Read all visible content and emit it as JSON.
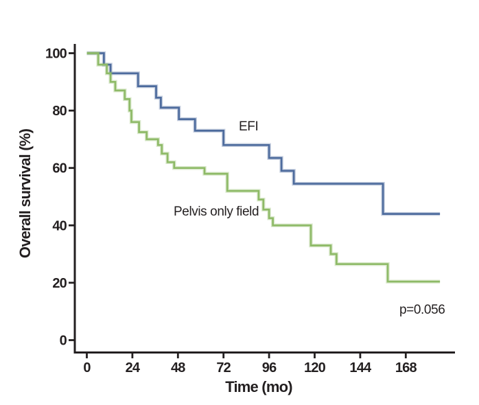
{
  "figure": {
    "background_color": "#ffffff",
    "axis_color": "#231f20",
    "text_color": "#231f20"
  },
  "chart_data": {
    "type": "line",
    "subtype": "kaplan-meier-step",
    "title": "",
    "xlabel": "Time (mo)",
    "ylabel": "Overall survival (%)",
    "x_ticks": [
      0,
      24,
      48,
      72,
      96,
      120,
      144,
      168
    ],
    "y_ticks": [
      0,
      20,
      40,
      60,
      80,
      100
    ],
    "xlim": [
      0,
      194
    ],
    "ylim": [
      0,
      100
    ],
    "grid": false,
    "legend_position": "inline-labels",
    "labels": {
      "efi": "EFI",
      "pelvis": "Pelvis only field",
      "p_value": "p=0.056"
    },
    "series": [
      {
        "name": "EFI",
        "color": "#4d6b9d",
        "end_t": 186,
        "points": [
          [
            0,
            100
          ],
          [
            9,
            96
          ],
          [
            12.5,
            93
          ],
          [
            27,
            88.5
          ],
          [
            36.5,
            84.5
          ],
          [
            39,
            81
          ],
          [
            48.5,
            77
          ],
          [
            57,
            73
          ],
          [
            72,
            68
          ],
          [
            96,
            63.5
          ],
          [
            102.5,
            59
          ],
          [
            109,
            54.5
          ],
          [
            156,
            44
          ]
        ]
      },
      {
        "name": "Pelvis only field",
        "color": "#8eba67",
        "end_t": 186,
        "points": [
          [
            0,
            100
          ],
          [
            6,
            96
          ],
          [
            10.5,
            93
          ],
          [
            12.5,
            90
          ],
          [
            15,
            87
          ],
          [
            20,
            84
          ],
          [
            22.5,
            80
          ],
          [
            23.5,
            76
          ],
          [
            27.5,
            72.5
          ],
          [
            31.5,
            70
          ],
          [
            37.5,
            68
          ],
          [
            39.5,
            65
          ],
          [
            42.5,
            62
          ],
          [
            46,
            60
          ],
          [
            62,
            58
          ],
          [
            74,
            52
          ],
          [
            90.5,
            49
          ],
          [
            93,
            45.5
          ],
          [
            96,
            42.5
          ],
          [
            98,
            40
          ],
          [
            118,
            33
          ],
          [
            128.5,
            30
          ],
          [
            131.5,
            26.5
          ],
          [
            158.5,
            20.4
          ]
        ]
      }
    ]
  }
}
